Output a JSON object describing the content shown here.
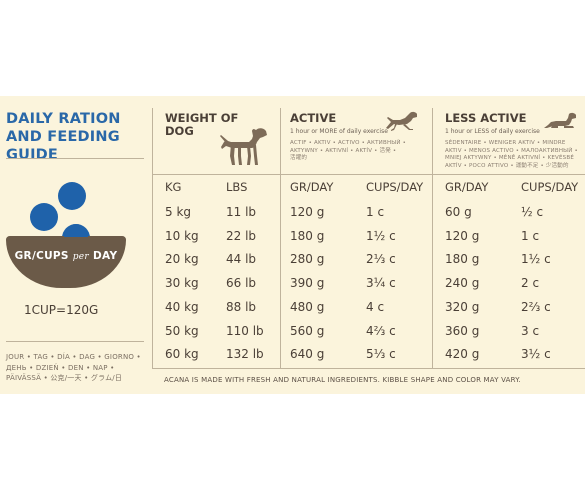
{
  "guide": {
    "title": "DAILY RATION AND FEEDING GUIDE",
    "bowl_label_a": "GR/CUPS",
    "bowl_label_b": "per",
    "bowl_label_c": "DAY",
    "cup_note": "1CUP=120G",
    "day_words_1": "JOUR • TAG • DÍA • DAG • GIORNO •",
    "day_words_2": "ДЕНЬ • DZIEŃ • DEN • NAP •",
    "day_words_3": "PÄIVÄSSÄ • 公克/一天 • グラム/日",
    "icons": [
      "bowl-icon",
      "kibble-icon",
      "dog-standing-icon",
      "dog-running-icon",
      "dog-lying-icon"
    ],
    "colors": {
      "title": "#2a68a8",
      "bowl": "#6b5a48",
      "kibble": "#1f62aa",
      "panel": "#fbf4dc"
    }
  },
  "headers": {
    "weight": "WEIGHT OF",
    "weight2": "DOG",
    "active": "ACTIVE",
    "active_sub": "1 hour or MORE of daily exercise",
    "active_langs_1": "ACTIF • AKTIV • ACTIVO • АКТИВНЫЙ •",
    "active_langs_2": "AKTYWNY • AKTIVNÍ • AKTÍV • 活発 •",
    "active_langs_3": "活躍的",
    "less": "LESS ACTIVE",
    "less_sub": "1 hour or LESS of daily exercise",
    "less_langs_1": "SÉDENTAIRE • WENIGER AKTIV • MINDRE",
    "less_langs_2": "AKTIV • MENOS ACTIVO • МАЛОАКТИВНЫЙ •",
    "less_langs_3": "MNIEJ AKTYWNY • MÉNĚ AKTIVNÍ • KEVÉSBÉ",
    "less_langs_4": "AKTÍV • POCO ATTIVO • 運動不足 • 少活動的"
  },
  "columns": [
    "KG",
    "LBS",
    "GR/DAY",
    "CUPS/DAY",
    "GR/DAY",
    "CUPS/DAY"
  ],
  "rows": [
    [
      "5 kg",
      "11 lb",
      "120 g",
      "1 c",
      "60 g",
      "½ c"
    ],
    [
      "10 kg",
      "22 lb",
      "180 g",
      "1½ c",
      "120 g",
      "1 c"
    ],
    [
      "20 kg",
      "44 lb",
      "280 g",
      "2⅓ c",
      "180 g",
      "1½ c"
    ],
    [
      "30 kg",
      "66 lb",
      "390 g",
      "3¼ c",
      "240 g",
      "2 c"
    ],
    [
      "40 kg",
      "88 lb",
      "480 g",
      "4 c",
      "320 g",
      "2⅔ c"
    ],
    [
      "50 kg",
      "110 lb",
      "560 g",
      "4⅔ c",
      "360 g",
      "3 c"
    ],
    [
      "60 kg",
      "132 lb",
      "640 g",
      "5⅓ c",
      "420 g",
      "3½ c"
    ]
  ],
  "footnote": "ACANA IS MADE WITH FRESH AND NATURAL INGREDIENTS. KIBBLE SHAPE AND COLOR MAY VARY."
}
